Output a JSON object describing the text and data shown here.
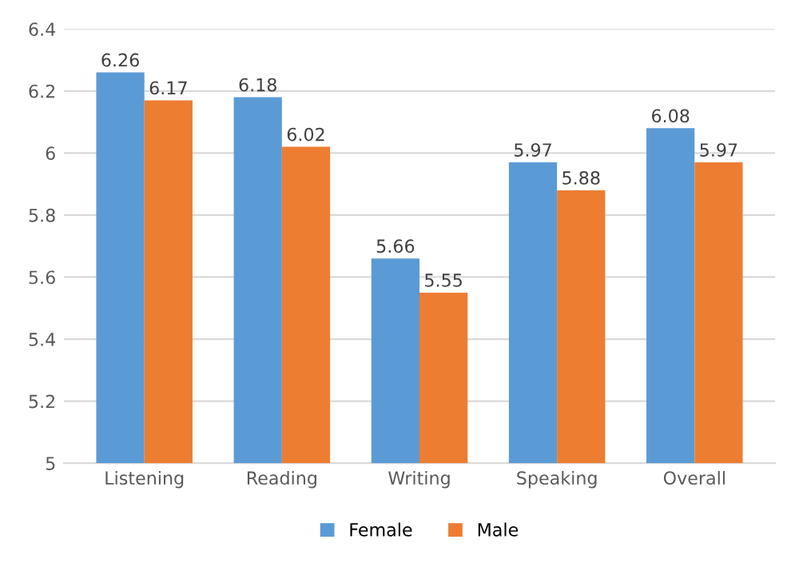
{
  "chart_data": {
    "type": "bar",
    "categories": [
      "Listening",
      "Reading",
      "Writing",
      "Speaking",
      "Overall"
    ],
    "series": [
      {
        "name": "Female",
        "color": "#5b9bd5",
        "values": [
          6.26,
          6.18,
          5.66,
          5.97,
          6.08
        ]
      },
      {
        "name": "Male",
        "color": "#ed7d31",
        "values": [
          6.17,
          6.02,
          5.55,
          5.88,
          5.97
        ]
      }
    ],
    "ylim": [
      5,
      6.4
    ],
    "yticks": [
      5,
      5.2,
      5.4,
      5.6,
      5.8,
      6,
      6.2,
      6.4
    ],
    "grid": "y",
    "legend": "bottom",
    "data_labels": true
  }
}
